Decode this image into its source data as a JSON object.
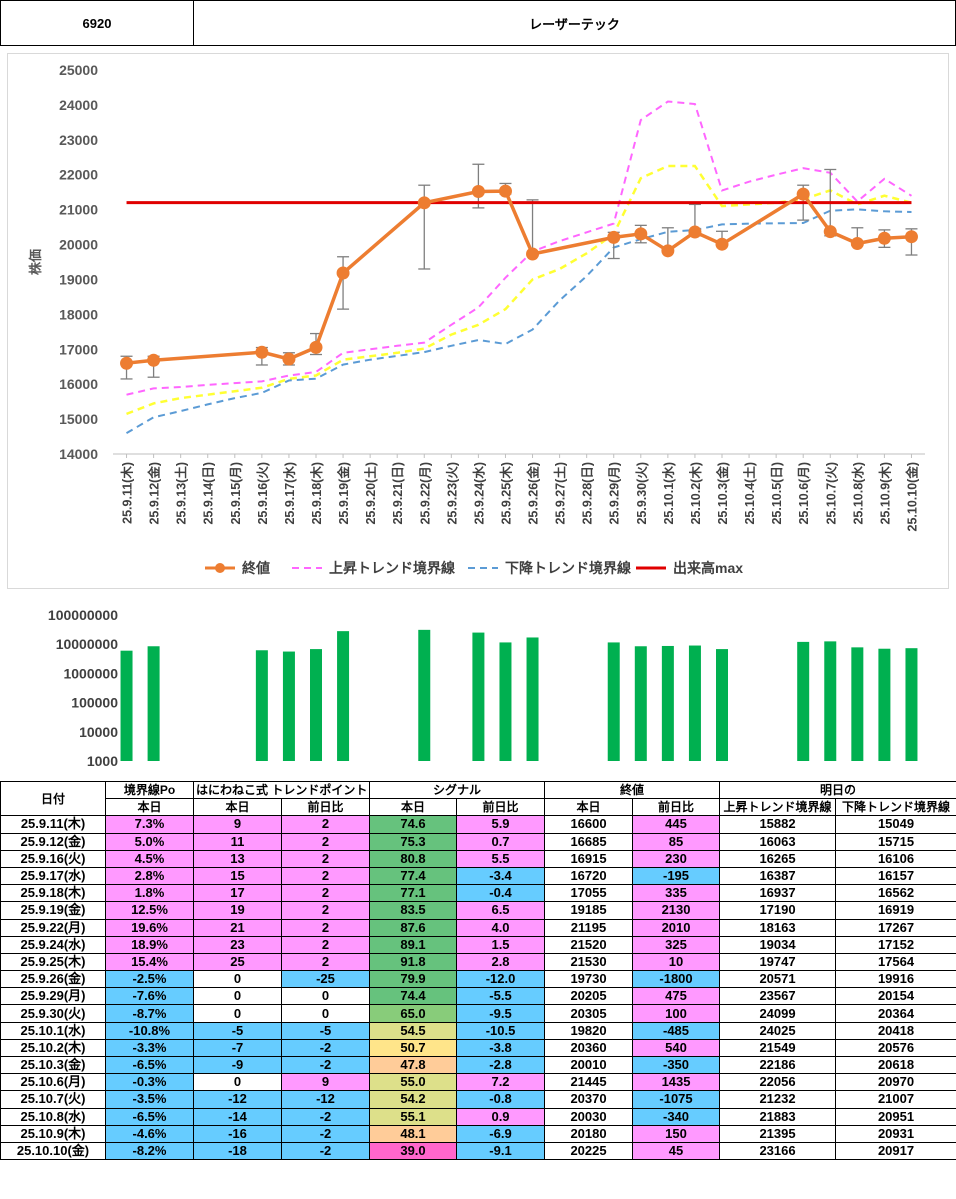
{
  "header": {
    "code": "6920",
    "name": "レーザーテック"
  },
  "chart_data": [
    {
      "type": "line",
      "ylabel": "株価",
      "ylim": [
        14000,
        25000
      ],
      "yticks": [
        14000,
        15000,
        16000,
        17000,
        18000,
        19000,
        20000,
        21000,
        22000,
        23000,
        24000,
        25000
      ],
      "dates": [
        "25.9.11(木)",
        "25.9.12(金)",
        "25.9.13(土)",
        "25.9.14(日)",
        "25.9.15(月)",
        "25.9.16(火)",
        "25.9.17(水)",
        "25.9.18(木)",
        "25.9.19(金)",
        "25.9.20(土)",
        "25.9.21(日)",
        "25.9.22(月)",
        "25.9.23(火)",
        "25.9.24(水)",
        "25.9.25(木)",
        "25.9.26(金)",
        "25.9.27(土)",
        "25.9.28(日)",
        "25.9.29(月)",
        "25.9.30(火)",
        "25.10.1(水)",
        "25.10.2(木)",
        "25.10.3(金)",
        "25.10.4(土)",
        "25.10.5(日)",
        "25.10.6(月)",
        "25.10.7(火)",
        "25.10.8(水)",
        "25.10.9(木)",
        "25.10.10(金)"
      ],
      "close": [
        16600,
        16685,
        null,
        null,
        null,
        16915,
        16720,
        17055,
        19185,
        null,
        null,
        21195,
        null,
        21520,
        21530,
        19730,
        null,
        null,
        20205,
        20305,
        19820,
        20360,
        20010,
        null,
        null,
        21445,
        20370,
        20030,
        20180,
        20225
      ],
      "high": [
        16800,
        16800,
        null,
        null,
        null,
        17050,
        16900,
        17450,
        19650,
        null,
        null,
        21700,
        null,
        22300,
        21750,
        21280,
        null,
        null,
        20350,
        20550,
        20480,
        21150,
        20380,
        null,
        null,
        21700,
        22150,
        20480,
        20420,
        20450
      ],
      "low": [
        16150,
        16200,
        null,
        null,
        null,
        16550,
        16550,
        16850,
        18150,
        null,
        null,
        19300,
        null,
        21050,
        21450,
        19700,
        null,
        null,
        19600,
        20050,
        19800,
        20250,
        19970,
        null,
        null,
        20700,
        20250,
        19980,
        19920,
        19700
      ],
      "upper_trend": [
        15700,
        15880,
        15920,
        15980,
        16030,
        16080,
        16250,
        16350,
        16900,
        17000,
        17100,
        17190,
        17700,
        18200,
        19050,
        19800,
        20100,
        20350,
        20600,
        23567,
        24099,
        24025,
        21549,
        21800,
        22000,
        22186,
        22056,
        21232,
        21883,
        21395
      ],
      "lower_trend": [
        14600,
        15050,
        15230,
        15420,
        15600,
        15750,
        16106,
        16157,
        16562,
        16700,
        16810,
        16919,
        17100,
        17267,
        17152,
        17564,
        18400,
        19100,
        19916,
        20154,
        20364,
        20418,
        20576,
        20600,
        20610,
        20618,
        20970,
        21007,
        20951,
        20931
      ],
      "mid_trend": [
        15150,
        15450,
        15600,
        15700,
        15800,
        15900,
        16150,
        16250,
        16700,
        16800,
        16900,
        17020,
        17420,
        17700,
        18150,
        19000,
        19300,
        19750,
        20300,
        21900,
        22250,
        22250,
        21100,
        21150,
        21200,
        21300,
        21550,
        21150,
        21400,
        21200
      ],
      "max_volume_line": 21200,
      "legend": [
        "終値",
        "上昇トレンド境界線",
        "下降トレンド境界線",
        "出来高max"
      ],
      "colors": {
        "close": "#ED7D31",
        "upper": "#FF66FF",
        "lower": "#5B9BD5",
        "mid": "#FFFF33",
        "max": "#E00000"
      }
    },
    {
      "type": "bar",
      "scale": "log",
      "yticks": [
        "100000000",
        "10000000",
        "1000000",
        "100000",
        "10000",
        "1000"
      ],
      "volumes": [
        6000000,
        8500000,
        null,
        null,
        null,
        6200000,
        5600000,
        6800000,
        28000000,
        null,
        null,
        31000000,
        null,
        25000000,
        11500000,
        17000000,
        null,
        null,
        11500000,
        8500000,
        8700000,
        9000000,
        6800000,
        null,
        null,
        12000000,
        12500000,
        7800000,
        7000000,
        7300000
      ],
      "color": "#00B050"
    }
  ],
  "table": {
    "head1": [
      "日付",
      "境界線Po",
      "はにわねこ式 トレンドポイント",
      "シグナル",
      "終値",
      "明日の"
    ],
    "head2": [
      "本日",
      "本日",
      "前日比",
      "本日",
      "前日比",
      "本日",
      "前日比",
      "上昇トレンド境界線",
      "下降トレンド境界線"
    ],
    "rows": [
      [
        "25.9.11(木)",
        "7.3%",
        "9",
        "2",
        "74.6",
        "5.9",
        "16600",
        "445",
        "15882",
        "15049"
      ],
      [
        "25.9.12(金)",
        "5.0%",
        "11",
        "2",
        "75.3",
        "0.7",
        "16685",
        "85",
        "16063",
        "15715"
      ],
      [
        "25.9.16(火)",
        "4.5%",
        "13",
        "2",
        "80.8",
        "5.5",
        "16915",
        "230",
        "16265",
        "16106"
      ],
      [
        "25.9.17(水)",
        "2.8%",
        "15",
        "2",
        "77.4",
        "-3.4",
        "16720",
        "-195",
        "16387",
        "16157"
      ],
      [
        "25.9.18(木)",
        "1.8%",
        "17",
        "2",
        "77.1",
        "-0.4",
        "17055",
        "335",
        "16937",
        "16562"
      ],
      [
        "25.9.19(金)",
        "12.5%",
        "19",
        "2",
        "83.5",
        "6.5",
        "19185",
        "2130",
        "17190",
        "16919"
      ],
      [
        "25.9.22(月)",
        "19.6%",
        "21",
        "2",
        "87.6",
        "4.0",
        "21195",
        "2010",
        "18163",
        "17267"
      ],
      [
        "25.9.24(水)",
        "18.9%",
        "23",
        "2",
        "89.1",
        "1.5",
        "21520",
        "325",
        "19034",
        "17152"
      ],
      [
        "25.9.25(木)",
        "15.4%",
        "25",
        "2",
        "91.8",
        "2.8",
        "21530",
        "10",
        "19747",
        "17564"
      ],
      [
        "25.9.26(金)",
        "-2.5%",
        "0",
        "-25",
        "79.9",
        "-12.0",
        "19730",
        "-1800",
        "20571",
        "19916"
      ],
      [
        "25.9.29(月)",
        "-7.6%",
        "0",
        "0",
        "74.4",
        "-5.5",
        "20205",
        "475",
        "23567",
        "20154"
      ],
      [
        "25.9.30(火)",
        "-8.7%",
        "0",
        "0",
        "65.0",
        "-9.5",
        "20305",
        "100",
        "24099",
        "20364"
      ],
      [
        "25.10.1(水)",
        "-10.8%",
        "-5",
        "-5",
        "54.5",
        "-10.5",
        "19820",
        "-485",
        "24025",
        "20418"
      ],
      [
        "25.10.2(木)",
        "-3.3%",
        "-7",
        "-2",
        "50.7",
        "-3.8",
        "20360",
        "540",
        "21549",
        "20576"
      ],
      [
        "25.10.3(金)",
        "-6.5%",
        "-9",
        "-2",
        "47.8",
        "-2.8",
        "20010",
        "-350",
        "22186",
        "20618"
      ],
      [
        "25.10.6(月)",
        "-0.3%",
        "0",
        "9",
        "55.0",
        "7.2",
        "21445",
        "1435",
        "22056",
        "20970"
      ],
      [
        "25.10.7(火)",
        "-3.5%",
        "-12",
        "-12",
        "54.2",
        "-0.8",
        "20370",
        "-1075",
        "21232",
        "21007"
      ],
      [
        "25.10.8(水)",
        "-6.5%",
        "-14",
        "-2",
        "55.1",
        "0.9",
        "20030",
        "-340",
        "21883",
        "20951"
      ],
      [
        "25.10.9(木)",
        "-4.6%",
        "-16",
        "-2",
        "48.1",
        "-6.9",
        "20180",
        "150",
        "21395",
        "20931"
      ],
      [
        "25.10.10(金)",
        "-8.2%",
        "-18",
        "-2",
        "39.0",
        "-9.1",
        "20225",
        "45",
        "23166",
        "20917"
      ]
    ]
  }
}
